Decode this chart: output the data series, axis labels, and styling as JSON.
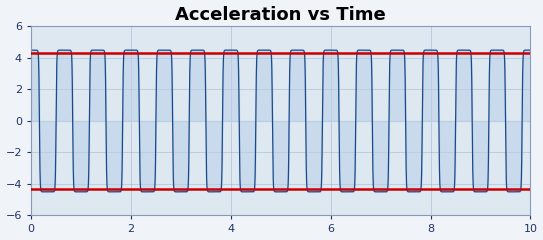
{
  "title": "Acceleration vs Time",
  "title_fontsize": 13,
  "title_fontweight": "bold",
  "xlim": [
    0,
    10
  ],
  "ylim": [
    -6,
    6
  ],
  "xticks": [
    0,
    2,
    4,
    6,
    8,
    10
  ],
  "yticks": [
    -6,
    -4,
    -2,
    0,
    2,
    4,
    6
  ],
  "hline_y_pos": 4.3,
  "hline_y_neg": -4.3,
  "hline_color": "#cc0000",
  "hline_lw": 1.8,
  "line_color": "#1a4a8a",
  "fill_color": "#b8cfe8",
  "fill_alpha": 0.55,
  "bg_color": "#dde8f0",
  "freq": 1.5,
  "amplitude": 4.5,
  "shape_power": 0.18,
  "grid_color": "#8899bb",
  "grid_alpha": 0.5,
  "tick_fontsize": 8,
  "tick_color": "#223366",
  "fig_width": 5.43,
  "fig_height": 2.4,
  "dpi": 100
}
